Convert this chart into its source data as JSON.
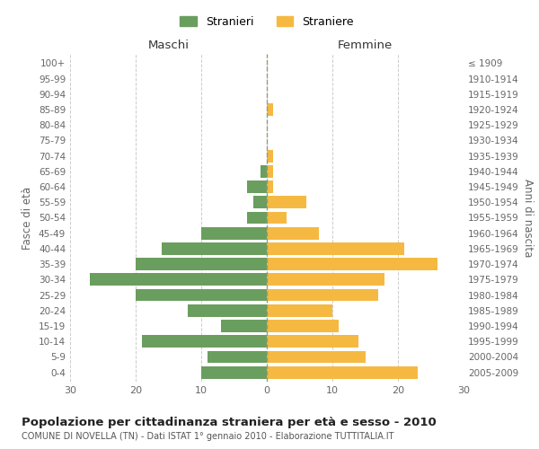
{
  "age_groups": [
    "0-4",
    "5-9",
    "10-14",
    "15-19",
    "20-24",
    "25-29",
    "30-34",
    "35-39",
    "40-44",
    "45-49",
    "50-54",
    "55-59",
    "60-64",
    "65-69",
    "70-74",
    "75-79",
    "80-84",
    "85-89",
    "90-94",
    "95-99",
    "100+"
  ],
  "birth_years": [
    "2005-2009",
    "2000-2004",
    "1995-1999",
    "1990-1994",
    "1985-1989",
    "1980-1984",
    "1975-1979",
    "1970-1974",
    "1965-1969",
    "1960-1964",
    "1955-1959",
    "1950-1954",
    "1945-1949",
    "1940-1944",
    "1935-1939",
    "1930-1934",
    "1925-1929",
    "1920-1924",
    "1915-1919",
    "1910-1914",
    "≤ 1909"
  ],
  "males": [
    10,
    9,
    19,
    7,
    12,
    20,
    27,
    20,
    16,
    10,
    3,
    2,
    3,
    1,
    0,
    0,
    0,
    0,
    0,
    0,
    0
  ],
  "females": [
    23,
    15,
    14,
    11,
    10,
    17,
    18,
    26,
    21,
    8,
    3,
    6,
    1,
    1,
    1,
    0,
    0,
    1,
    0,
    0,
    0
  ],
  "male_color": "#6a9e5e",
  "female_color": "#f5b942",
  "background_color": "#ffffff",
  "grid_color": "#cccccc",
  "title": "Popolazione per cittadinanza straniera per età e sesso - 2010",
  "subtitle": "COMUNE DI NOVELLA (TN) - Dati ISTAT 1° gennaio 2010 - Elaborazione TUTTITALIA.IT",
  "xlabel_left": "Maschi",
  "xlabel_right": "Femmine",
  "ylabel_left": "Fasce di età",
  "ylabel_right": "Anni di nascita",
  "legend_males": "Stranieri",
  "legend_females": "Straniere",
  "xlim": 30,
  "tick_color": "#666666",
  "bar_height": 0.8
}
